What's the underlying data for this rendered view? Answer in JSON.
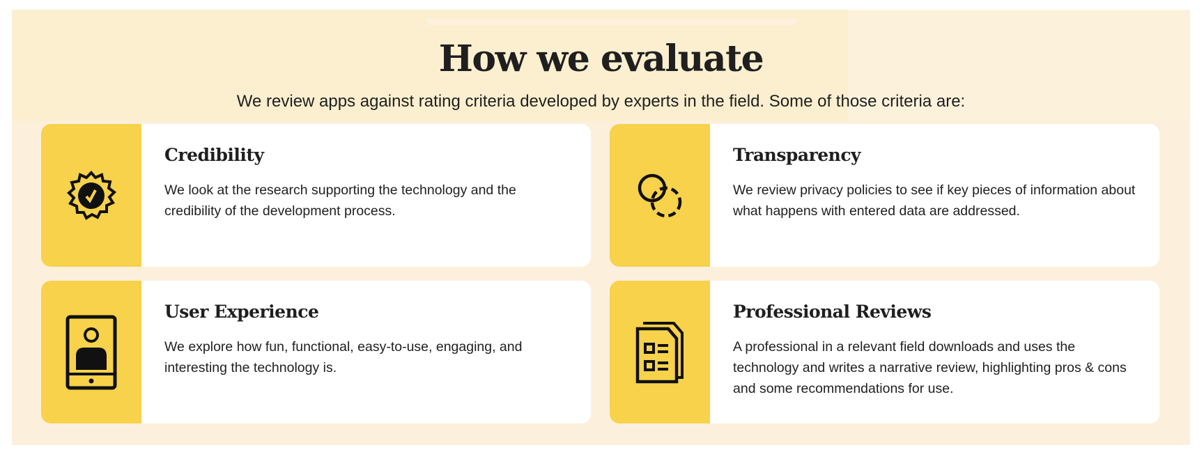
{
  "header": {
    "title": "How we evaluate",
    "subtitle": "We review apps against rating criteria developed by experts in the field. Some of those criteria are:"
  },
  "colors": {
    "accent": "#f7d24a",
    "background": "#fbefcf",
    "text": "#1f1f1f"
  },
  "criteria": [
    {
      "title": "Credibility",
      "icon": "badge-check-icon",
      "description": "We look at the research supporting the technology and the credibility of the development process."
    },
    {
      "title": "Transparency",
      "icon": "overlapping-circles-icon",
      "description": "We review privacy policies to see if key pieces of information about what happens with entered data are addressed."
    },
    {
      "title": "User Experience",
      "icon": "tablet-user-icon",
      "description": "We explore how fun, functional, easy-to-use, engaging, and interesting the technology is."
    },
    {
      "title": "Professional Reviews",
      "icon": "document-checklist-icon",
      "description": "A professional in a relevant field downloads and uses the technology and writes a narrative review, highlighting pros & cons and some recommendations for use."
    }
  ]
}
